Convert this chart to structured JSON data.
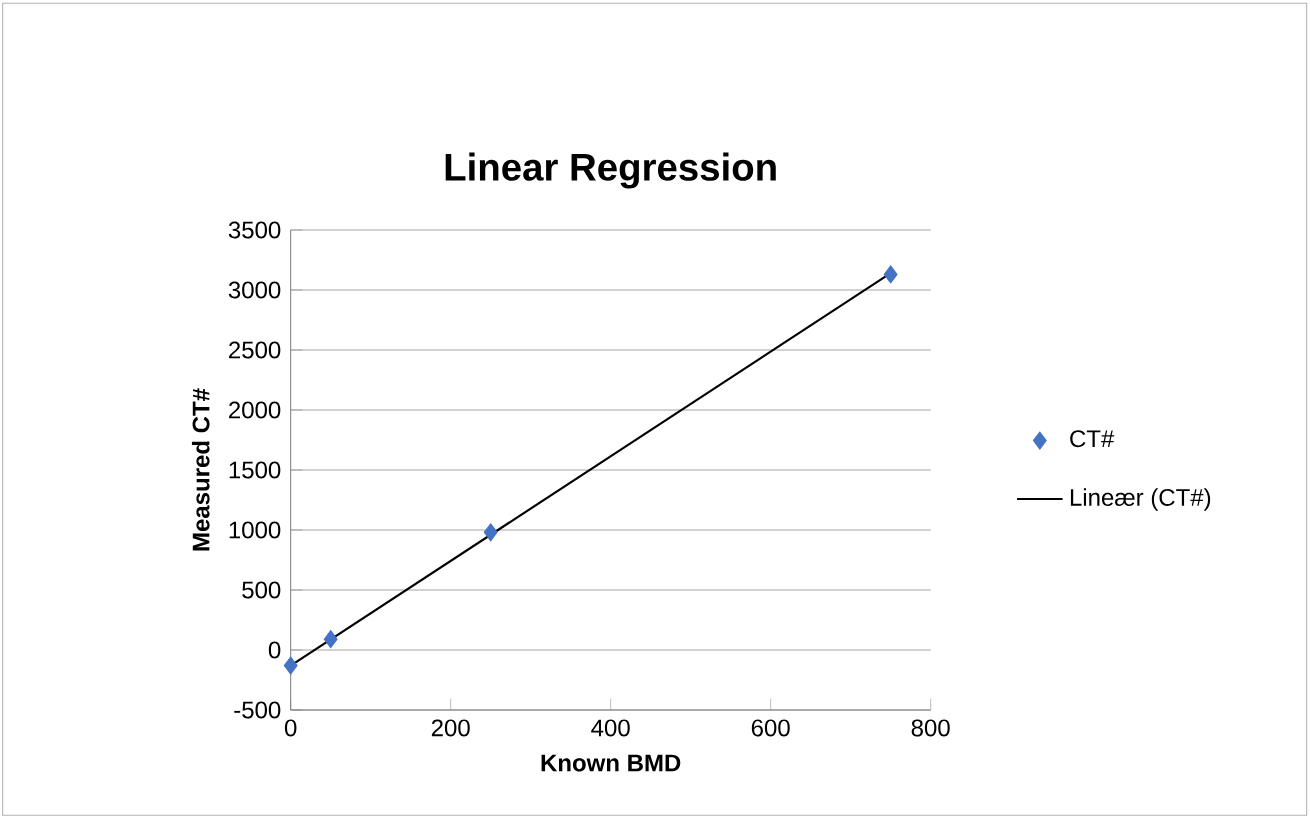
{
  "chart_data": {
    "type": "scatter",
    "title": "Linear Regression",
    "xlabel": "Known BMD",
    "ylabel": "Measured CT#",
    "xlim": [
      0,
      800
    ],
    "xticks": [
      0,
      200,
      400,
      600,
      800
    ],
    "ylim": [
      -500,
      3500
    ],
    "yticks": [
      -500,
      0,
      500,
      1000,
      1500,
      2000,
      2500,
      3000,
      3500
    ],
    "grid": "y",
    "legend": "right",
    "series": [
      {
        "name": "CT#",
        "marker": "diamond",
        "color": "#4472c4",
        "x": [
          0,
          50,
          250,
          750
        ],
        "values": [
          -130,
          90,
          980,
          3130
        ]
      },
      {
        "name": "Lineær (CT#)",
        "type": "line",
        "color": "#000000",
        "line_style": "solid",
        "x": [
          0,
          750
        ],
        "values": [
          -130,
          3140
        ]
      }
    ]
  }
}
